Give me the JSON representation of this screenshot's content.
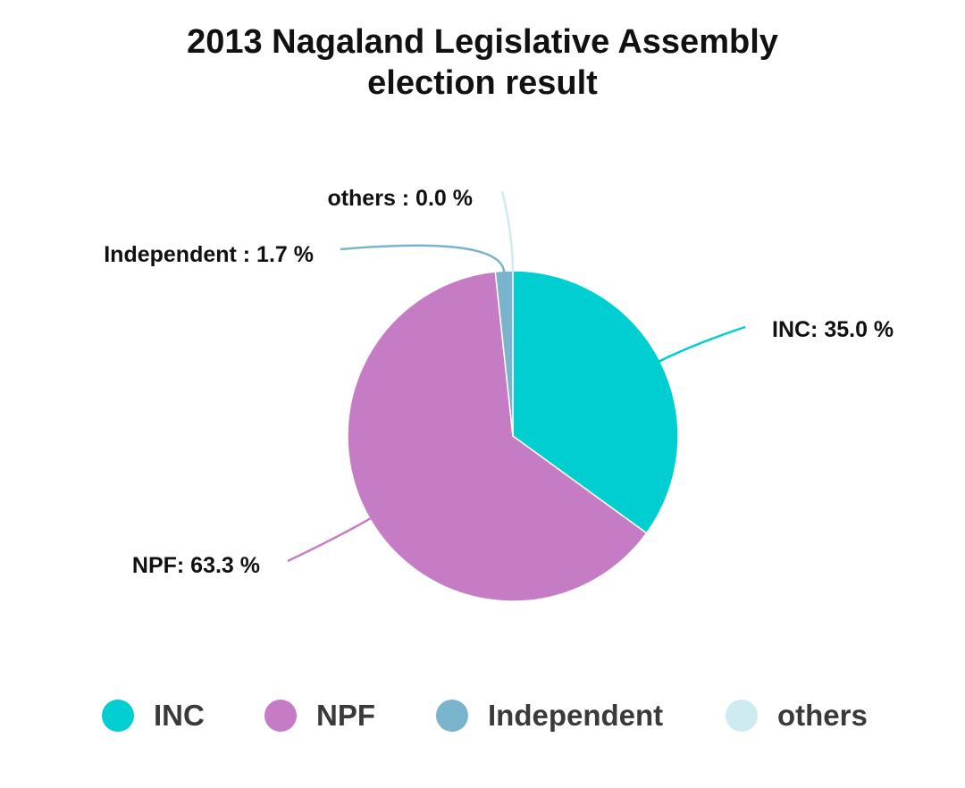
{
  "chart_data": {
    "type": "pie",
    "title": "2013 Nagaland Legislative Assembly election result",
    "title_lines": [
      "2013 Nagaland Legislative Assembly",
      "election result"
    ],
    "slices": [
      {
        "name": "INC",
        "value": 35.0,
        "label": "INC: 35.0 %",
        "color": "#00ced1"
      },
      {
        "name": "NPF",
        "value": 63.3,
        "label": "NPF: 63.3 %",
        "color": "#c67bc5"
      },
      {
        "name": "Independent",
        "value": 1.7,
        "label": "Independent : 1.7 %",
        "color": "#7ab4cc"
      },
      {
        "name": "others",
        "value": 0.0,
        "label": "others : 0.0 %",
        "color": "#cdebf0"
      }
    ],
    "legend": {
      "placement": "bottom",
      "items": [
        "INC",
        "NPF",
        "Independent",
        "others"
      ]
    }
  }
}
